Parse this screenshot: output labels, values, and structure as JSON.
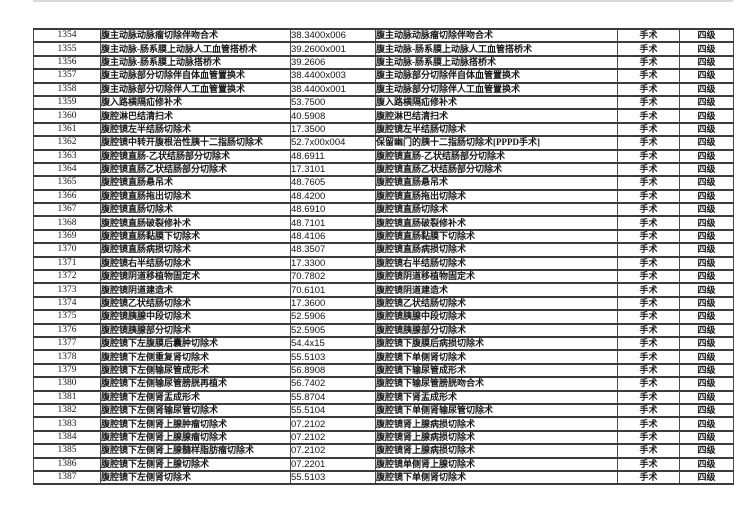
{
  "page": {
    "background_color": "#ffffff",
    "text_color": "#141414",
    "border_color": "#3c3c3c"
  },
  "table": {
    "column_keys": [
      "num",
      "name",
      "code",
      "name2",
      "type",
      "level"
    ],
    "rows": [
      {
        "num": "1354",
        "name": "腹主动脉动脉瘤切除伴吻合术",
        "code": "38.3400x006",
        "name2": "腹主动脉动脉瘤切除伴吻合术",
        "type": "手术",
        "level": "四级"
      },
      {
        "num": "1355",
        "name": "腹主动脉-肠系膜上动脉人工血管搭桥术",
        "code": "39.2600x001",
        "name2": "腹主动脉-肠系膜上动脉人工血管搭桥术",
        "type": "手术",
        "level": "四级"
      },
      {
        "num": "1356",
        "name": "腹主动脉-肠系膜上动脉搭桥术",
        "code": "39.2606",
        "name2": "腹主动脉-肠系膜上动脉搭桥术",
        "type": "手术",
        "level": "四级"
      },
      {
        "num": "1357",
        "name": "腹主动脉部分切除伴自体血管置换术",
        "code": "38.4400x003",
        "name2": "腹主动脉部分切除伴自体血管置换术",
        "type": "手术",
        "level": "四级"
      },
      {
        "num": "1358",
        "name": "腹主动脉部分切除伴人工血管置换术",
        "code": "38.4400x001",
        "name2": "腹主动脉部分切除伴人工血管置换术",
        "type": "手术",
        "level": "四级"
      },
      {
        "num": "1359",
        "name": "腹入路横隔疝修补术",
        "code": "53.7500",
        "name2": "腹入路横隔疝修补术",
        "type": "手术",
        "level": "四级"
      },
      {
        "num": "1360",
        "name": "腹腔淋巴结清扫术",
        "code": "40.5908",
        "name2": "腹腔淋巴结清扫术",
        "type": "手术",
        "level": "四级"
      },
      {
        "num": "1361",
        "name": "腹腔镜左半结肠切除术",
        "code": "17.3500",
        "name2": "腹腔镜左半结肠切除术",
        "type": "手术",
        "level": "四级"
      },
      {
        "num": "1362",
        "name": "腹腔镜中转开腹根治性胰十二指肠切除术",
        "code": "52.7x00x004",
        "name2": "保留幽门的胰十二指肠切除术[PPPD手术]",
        "type": "手术",
        "level": "四级"
      },
      {
        "num": "1363",
        "name": "腹腔镜直肠-乙状结肠部分切除术",
        "code": "48.6911",
        "name2": "腹腔镜直肠-乙状结肠部分切除术",
        "type": "手术",
        "level": "四级"
      },
      {
        "num": "1364",
        "name": "腹腔镜直肠乙状结肠部分切除术",
        "code": "17.3101",
        "name2": "腹腔镜直肠乙状结肠部分切除术",
        "type": "手术",
        "level": "四级"
      },
      {
        "num": "1365",
        "name": "腹腔镜直肠悬吊术",
        "code": "48.7605",
        "name2": "腹腔镜直肠悬吊术",
        "type": "手术",
        "level": "四级"
      },
      {
        "num": "1366",
        "name": "腹腔镜直肠拖出切除术",
        "code": "48.4200",
        "name2": "腹腔镜直肠拖出切除术",
        "type": "手术",
        "level": "四级"
      },
      {
        "num": "1367",
        "name": "腹腔镜直肠切除术",
        "code": "48.6910",
        "name2": "腹腔镜直肠切除术",
        "type": "手术",
        "level": "四级"
      },
      {
        "num": "1368",
        "name": "腹腔镜直肠破裂修补术",
        "code": "48.7101",
        "name2": "腹腔镜直肠破裂修补术",
        "type": "手术",
        "level": "四级"
      },
      {
        "num": "1369",
        "name": "腹腔镜直肠黏膜下切除术",
        "code": "48.4106",
        "name2": "腹腔镜直肠黏膜下切除术",
        "type": "手术",
        "level": "四级"
      },
      {
        "num": "1370",
        "name": "腹腔镜直肠病损切除术",
        "code": "48.3507",
        "name2": "腹腔镜直肠病损切除术",
        "type": "手术",
        "level": "四级"
      },
      {
        "num": "1371",
        "name": "腹腔镜右半结肠切除术",
        "code": "17.3300",
        "name2": "腹腔镜右半结肠切除术",
        "type": "手术",
        "level": "四级"
      },
      {
        "num": "1372",
        "name": "腹腔镜阴道移植物固定术",
        "code": "70.7802",
        "name2": "腹腔镜阴道移植物固定术",
        "type": "手术",
        "level": "四级"
      },
      {
        "num": "1373",
        "name": "腹腔镜阴道建造术",
        "code": "70.6101",
        "name2": "腹腔镜阴道建造术",
        "type": "手术",
        "level": "四级"
      },
      {
        "num": "1374",
        "name": "腹腔镜乙状结肠切除术",
        "code": "17.3600",
        "name2": "腹腔镜乙状结肠切除术",
        "type": "手术",
        "level": "四级"
      },
      {
        "num": "1375",
        "name": "腹腔镜胰腺中段切除术",
        "code": "52.5906",
        "name2": "腹腔镜胰腺中段切除术",
        "type": "手术",
        "level": "四级"
      },
      {
        "num": "1376",
        "name": "腹腔镜胰腺部分切除术",
        "code": "52.5905",
        "name2": "腹腔镜胰腺部分切除术",
        "type": "手术",
        "level": "四级"
      },
      {
        "num": "1377",
        "name": "腹腔镜下左腹膜后囊肿切除术",
        "code": "54.4x15",
        "name2": "腹腔镜下腹膜后病损切除术",
        "type": "手术",
        "level": "四级"
      },
      {
        "num": "1378",
        "name": "腹腔镜下左侧重复肾切除术",
        "code": "55.5103",
        "name2": "腹腔镜下单侧肾切除术",
        "type": "手术",
        "level": "四级"
      },
      {
        "num": "1379",
        "name": "腹腔镜下左侧输尿管成形术",
        "code": "56.8908",
        "name2": "腹腔镜下输尿管成形术",
        "type": "手术",
        "level": "四级"
      },
      {
        "num": "1380",
        "name": "腹腔镜下左侧输尿管膀胱再植术",
        "code": "56.7402",
        "name2": "腹腔镜下输尿管膀胱吻合术",
        "type": "手术",
        "level": "四级"
      },
      {
        "num": "1381",
        "name": "腹腔镜下左侧肾盂成形术",
        "code": "55.8704",
        "name2": "腹腔镜下肾盂成形术",
        "type": "手术",
        "level": "四级"
      },
      {
        "num": "1382",
        "name": "腹腔镜下左侧肾输尿管切除术",
        "code": "55.5104",
        "name2": "腹腔镜下单侧肾输尿管切除术",
        "type": "手术",
        "level": "四级"
      },
      {
        "num": "1383",
        "name": "腹腔镜下左侧肾上腺肿瘤切除术",
        "code": "07.2102",
        "name2": "腹腔镜肾上腺病损切除术",
        "type": "手术",
        "level": "四级"
      },
      {
        "num": "1384",
        "name": "腹腔镜下左侧肾上腺腺瘤切除术",
        "code": "07.2102",
        "name2": "腹腔镜肾上腺病损切除术",
        "type": "手术",
        "level": "四级"
      },
      {
        "num": "1385",
        "name": "腹腔镜下左侧肾上腺髓样脂肪瘤切除术",
        "code": "07.2102",
        "name2": "腹腔镜肾上腺病损切除术",
        "type": "手术",
        "level": "四级"
      },
      {
        "num": "1386",
        "name": "腹腔镜下左侧肾上腺切除术",
        "code": "07.2201",
        "name2": "腹腔镜单侧肾上腺切除术",
        "type": "手术",
        "level": "四级"
      },
      {
        "num": "1387",
        "name": "腹腔镜下左侧肾切除术",
        "code": "55.5103",
        "name2": "腹腔镜下单侧肾切除术",
        "type": "手术",
        "level": "四级"
      }
    ]
  }
}
